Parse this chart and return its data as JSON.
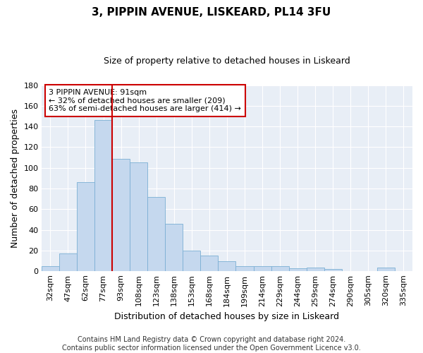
{
  "title_line1": "3, PIPPIN AVENUE, LISKEARD, PL14 3FU",
  "title_line2": "Size of property relative to detached houses in Liskeard",
  "xlabel": "Distribution of detached houses by size in Liskeard",
  "ylabel": "Number of detached properties",
  "categories": [
    "32sqm",
    "47sqm",
    "62sqm",
    "77sqm",
    "93sqm",
    "108sqm",
    "123sqm",
    "138sqm",
    "153sqm",
    "168sqm",
    "184sqm",
    "199sqm",
    "214sqm",
    "229sqm",
    "244sqm",
    "259sqm",
    "274sqm",
    "290sqm",
    "305sqm",
    "320sqm",
    "335sqm"
  ],
  "values": [
    5,
    17,
    86,
    146,
    109,
    105,
    72,
    46,
    20,
    15,
    10,
    5,
    5,
    5,
    3,
    4,
    2,
    0,
    0,
    4,
    0
  ],
  "bar_color": "#c5d8ee",
  "bar_edge_color": "#7bafd4",
  "vline_index": 4,
  "vline_color": "#cc0000",
  "annotation_line1": "3 PIPPIN AVENUE: 91sqm",
  "annotation_line2": "← 32% of detached houses are smaller (209)",
  "annotation_line3": "63% of semi-detached houses are larger (414) →",
  "annotation_box_color": "white",
  "annotation_box_edge": "#cc0000",
  "ylim_max": 180,
  "yticks": [
    0,
    20,
    40,
    60,
    80,
    100,
    120,
    140,
    160,
    180
  ],
  "footnote_line1": "Contains HM Land Registry data © Crown copyright and database right 2024.",
  "footnote_line2": "Contains public sector information licensed under the Open Government Licence v3.0.",
  "fig_bg_color": "#ffffff",
  "plot_bg_color": "#e8eef6",
  "grid_color": "#ffffff",
  "title_fontsize": 11,
  "subtitle_fontsize": 9,
  "ylabel_fontsize": 9,
  "xlabel_fontsize": 9,
  "tick_fontsize": 8,
  "annot_fontsize": 8,
  "footnote_fontsize": 7
}
